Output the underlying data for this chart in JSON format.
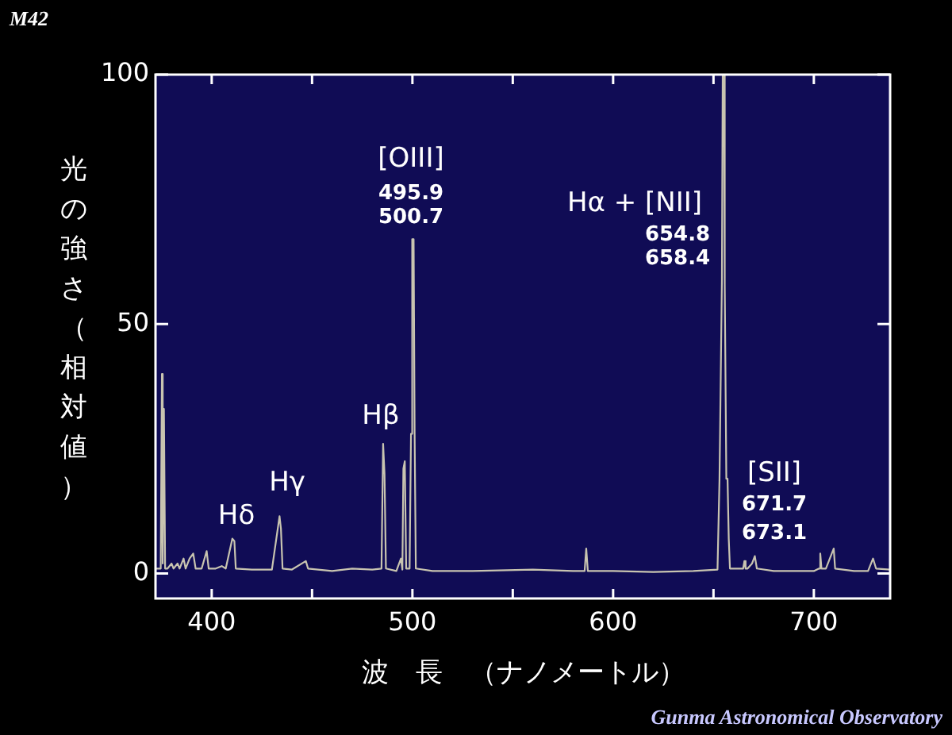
{
  "chart_data": {
    "type": "line",
    "title": "M42",
    "xlabel": "波　長　（ナノメートル）",
    "ylabel": "光の強さ（相対値）",
    "xlim": [
      372,
      738
    ],
    "xticks": [
      400,
      {
        "value": 450,
        "label": null
      },
      500,
      {
        "value": 550,
        "label": null
      },
      600,
      {
        "value": 650,
        "label": null
      },
      700
    ],
    "ylim": [
      -5,
      100
    ],
    "yticks": [
      0,
      50,
      100
    ],
    "grid": false,
    "legend": false,
    "marker": "none",
    "line_style": "solid",
    "series": [
      {
        "color": "#c8c4b0",
        "x": [
          372,
          374.6,
          375.2,
          375.6,
          376.2,
          376.8,
          378,
          380,
          381,
          383,
          384,
          386,
          387,
          389,
          390.8,
          392,
          395,
          397.5,
          398.5,
          402,
          405,
          407,
          410.3,
          411.3,
          412,
          420,
          430,
          433.8,
          434.5,
          435.3,
          440,
          446.9,
          448,
          460,
          470,
          480,
          484.6,
          485.4,
          486.1,
          486.8,
          492,
          494.3,
          495,
          495.5,
          496.2,
          496.9,
          498.6,
          499.3,
          499.9,
          500.6,
          501.1,
          501.7,
          510,
          530,
          560,
          580,
          585.8,
          586.6,
          587.4,
          600,
          620,
          640,
          652,
          653,
          654.2,
          654.6,
          655.2,
          655.6,
          656.4,
          657,
          657.6,
          658.2,
          664.8,
          665.4,
          666,
          667,
          669.2,
          670.6,
          671.6,
          680,
          700,
          702.6,
          703.2,
          703.8,
          706,
          709.9,
          710.6,
          720,
          727,
          729.5,
          731,
          738
        ],
        "values": [
          1,
          1,
          40,
          2,
          33,
          1,
          1,
          2,
          1,
          2,
          1,
          3,
          1,
          3,
          4,
          1,
          1,
          4.5,
          1,
          1,
          1.5,
          1,
          7,
          6.5,
          1,
          0.8,
          0.8,
          11.5,
          9,
          1,
          0.8,
          2.5,
          1,
          0.5,
          1,
          0.8,
          1,
          26,
          20,
          1,
          0.5,
          3,
          0.8,
          21,
          22.5,
          1,
          1,
          28,
          67,
          67,
          28,
          1,
          0.5,
          0.5,
          0.8,
          0.5,
          0.5,
          5,
          0.5,
          0.5,
          0.3,
          0.5,
          0.8,
          19,
          59,
          100,
          100,
          58,
          19,
          19,
          7,
          1,
          1,
          2.5,
          1,
          1,
          2,
          3.5,
          1,
          0.5,
          0.5,
          1,
          4,
          1,
          1,
          5,
          1,
          0.5,
          0.5,
          3,
          1,
          0.8
        ]
      }
    ],
    "annotations": [
      "[OIII]",
      "495.9",
      "500.7",
      "Hα + [NII]",
      "654.8",
      "658.4",
      "Hβ",
      "Hγ",
      "Hδ",
      "[SII]",
      "671.7",
      "673.1",
      "Gunma Astronomical Observatory"
    ]
  }
}
